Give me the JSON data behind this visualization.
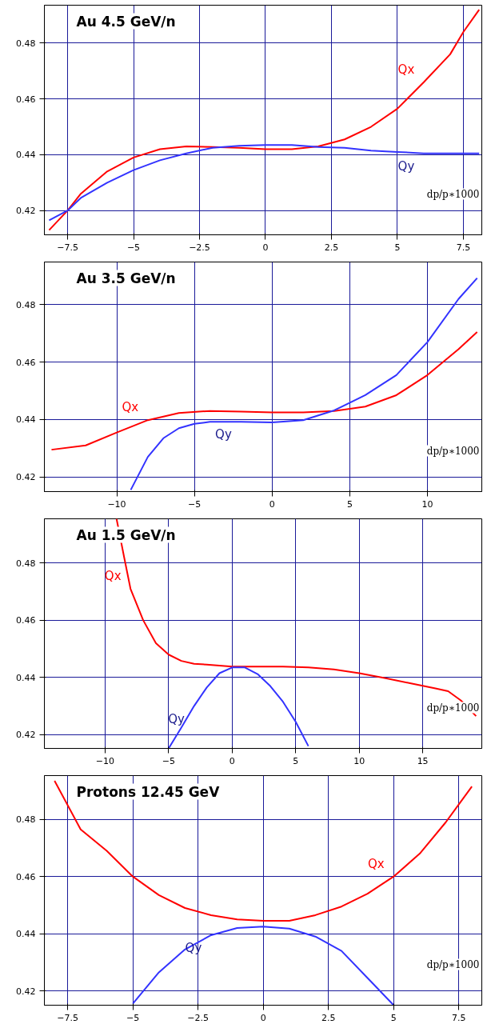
{
  "chart_data": [
    {
      "type": "line",
      "title": "Au 4.5 GeV/n",
      "xlabel": "dp/p∗1000",
      "xlim": [
        -8.38,
        8.2
      ],
      "ylim": [
        0.4113,
        0.4936
      ],
      "xticks": [
        {
          "value": -7.5,
          "label": "−7.5"
        },
        {
          "value": -5,
          "label": "−5"
        },
        {
          "value": -2.5,
          "label": "−2.5"
        },
        0,
        2.5,
        5,
        7.5
      ],
      "yticks": [
        0.42,
        0.44,
        0.46,
        0.48
      ],
      "grid": true,
      "annotations": [
        {
          "text": "Qx",
          "x": 6,
          "y": 0.466
        },
        {
          "text": "Qy",
          "x": 6,
          "y": 0.4405
        }
      ],
      "series": [
        {
          "color": "#ff0000",
          "x": [
            -8.2,
            -7.5,
            -7,
            -6,
            -5,
            -4,
            -3,
            -2,
            -1,
            0,
            1,
            2,
            3,
            4,
            5,
            6,
            7,
            7.5,
            8.1
          ],
          "values": [
            0.413,
            0.42,
            0.426,
            0.434,
            0.439,
            0.442,
            0.443,
            0.4428,
            0.4425,
            0.442,
            0.442,
            0.443,
            0.4455,
            0.45,
            0.4565,
            0.466,
            0.476,
            0.484,
            0.492
          ]
        },
        {
          "color": "#3333ff",
          "x": [
            -8.2,
            -7.5,
            -7,
            -6,
            -5,
            -4,
            -3,
            -2,
            -1,
            0,
            1,
            2,
            3,
            4,
            5,
            6,
            7,
            8.1
          ],
          "values": [
            0.4165,
            0.42,
            0.4245,
            0.43,
            0.4345,
            0.438,
            0.4405,
            0.4425,
            0.4432,
            0.4435,
            0.4435,
            0.4428,
            0.4425,
            0.4415,
            0.441,
            0.4405,
            0.4405,
            0.4405
          ]
        }
      ]
    },
    {
      "type": "line",
      "title": "Au 3.5 GeV/n",
      "xlabel": "dp/p∗1000",
      "xlim": [
        -14.66,
        13.5
      ],
      "ylim": [
        0.4149,
        0.4949
      ],
      "xticks": [
        {
          "value": -10,
          "label": "−10"
        },
        {
          "value": -5,
          "label": "−5"
        },
        0,
        5,
        10
      ],
      "yticks": [
        0.42,
        0.44,
        0.46,
        0.48
      ],
      "grid": true,
      "annotations": [
        {
          "text": "Qx",
          "x": -8,
          "y": 0.4398
        },
        {
          "text": "Qy",
          "x": -2,
          "y": 0.4392
        }
      ],
      "series": [
        {
          "color": "#ff0000",
          "x": [
            -14.2,
            -12,
            -10,
            -8,
            -6,
            -4,
            -2,
            0,
            2,
            4,
            6,
            8,
            10,
            12,
            13.2
          ],
          "values": [
            0.4295,
            0.431,
            0.4355,
            0.4398,
            0.4423,
            0.443,
            0.4428,
            0.4425,
            0.4425,
            0.443,
            0.4445,
            0.4485,
            0.4555,
            0.4645,
            0.4705
          ]
        },
        {
          "color": "#3333ff",
          "x": [
            -9.1,
            -8,
            -7,
            -6,
            -5,
            -4,
            -2,
            0,
            2,
            4,
            6,
            8,
            10,
            12,
            13.2
          ],
          "values": [
            0.4155,
            0.427,
            0.4335,
            0.437,
            0.4385,
            0.4392,
            0.4392,
            0.439,
            0.4398,
            0.4432,
            0.4485,
            0.4555,
            0.467,
            0.482,
            0.4893
          ]
        }
      ]
    },
    {
      "type": "line",
      "title": "Au 1.5 GeV/n",
      "xlabel": "dp/p∗1000",
      "xlim": [
        -14.78,
        19.65
      ],
      "ylim": [
        0.4152,
        0.4955
      ],
      "xticks": [
        {
          "value": -10,
          "label": "−10"
        },
        {
          "value": -5,
          "label": "−5"
        },
        0,
        5,
        10,
        15
      ],
      "yticks": [
        0.42,
        0.44,
        0.46,
        0.48
      ],
      "grid": true,
      "annotations": [
        {
          "text": "Qx",
          "x": -8,
          "y": 0.471
        },
        {
          "text": "Qy",
          "x": -3,
          "y": 0.43
        }
      ],
      "series": [
        {
          "color": "#ff0000",
          "x": [
            -9.1,
            -8.5,
            -8,
            -7,
            -6,
            -5,
            -4,
            -3,
            -2,
            0,
            2,
            4,
            6,
            8,
            10,
            12,
            14,
            16,
            17,
            18,
            19.2
          ],
          "values": [
            0.4955,
            0.482,
            0.471,
            0.46,
            0.452,
            0.448,
            0.4458,
            0.4448,
            0.4445,
            0.4438,
            0.4438,
            0.4438,
            0.4435,
            0.4428,
            0.4415,
            0.4398,
            0.438,
            0.4362,
            0.4352,
            0.432,
            0.4265
          ]
        },
        {
          "color": "#3333ff",
          "x": [
            -5,
            -4,
            -3,
            -2,
            -1,
            0,
            1,
            2,
            3,
            4,
            5,
            6
          ],
          "values": [
            0.4152,
            0.4225,
            0.43,
            0.4365,
            0.4415,
            0.4435,
            0.4435,
            0.4412,
            0.437,
            0.4315,
            0.4245,
            0.416
          ]
        }
      ]
    },
    {
      "type": "line",
      "title": "Protons 12.45 GeV",
      "xlabel": "dp/p∗1000",
      "xlim": [
        -8.39,
        8.38
      ],
      "ylim": [
        0.415,
        0.4953
      ],
      "xticks": [
        {
          "value": -7.5,
          "label": "−7.5"
        },
        {
          "value": -5,
          "label": "−5"
        },
        {
          "value": -2.5,
          "label": "−2.5"
        },
        0,
        2.5,
        5,
        7.5
      ],
      "yticks": [
        0.42,
        0.44,
        0.46,
        0.48
      ],
      "grid": true,
      "annotations": [
        {
          "text": "Qx",
          "x": 5,
          "y": 0.46
        },
        {
          "text": "Qy",
          "x": -2,
          "y": 0.4395
        }
      ],
      "series": [
        {
          "color": "#ff0000",
          "x": [
            -8,
            -7,
            -6,
            -5,
            -4,
            -3,
            -2,
            -1,
            0,
            1,
            2,
            3,
            4,
            5,
            6,
            7,
            8
          ],
          "values": [
            0.4935,
            0.4765,
            0.469,
            0.46,
            0.4535,
            0.449,
            0.4465,
            0.445,
            0.4445,
            0.4445,
            0.4465,
            0.4495,
            0.454,
            0.46,
            0.468,
            0.479,
            0.4915
          ]
        },
        {
          "color": "#3333ff",
          "x": [
            -5,
            -4,
            -3,
            -2,
            -1,
            0,
            1,
            2,
            3,
            4,
            5
          ],
          "values": [
            0.4155,
            0.4265,
            0.4345,
            0.4395,
            0.442,
            0.4425,
            0.4418,
            0.439,
            0.434,
            0.4245,
            0.415
          ]
        }
      ]
    }
  ]
}
